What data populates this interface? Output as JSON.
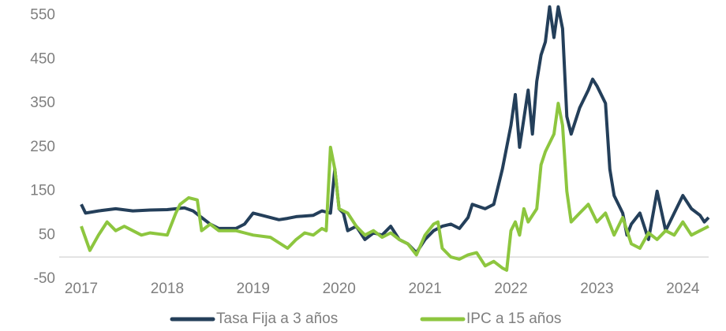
{
  "chart_data": {
    "type": "line",
    "xlim": [
      2017,
      2024.3
    ],
    "xticks": [
      2017,
      2018,
      2019,
      2020,
      2021,
      2022,
      2023,
      2024
    ],
    "ylim": [
      -50,
      580
    ],
    "yticks": [
      -50,
      50,
      150,
      250,
      350,
      450,
      550
    ],
    "grid": false,
    "legend": "bottom",
    "series": [
      {
        "name": "Tasa Fija a 3 años",
        "color": "#243f5a",
        "x": [
          2017.0,
          2017.05,
          2017.2,
          2017.4,
          2017.6,
          2017.8,
          2018.0,
          2018.2,
          2018.3,
          2018.4,
          2018.5,
          2018.6,
          2018.8,
          2018.9,
          2019.0,
          2019.1,
          2019.3,
          2019.4,
          2019.5,
          2019.7,
          2019.8,
          2019.9,
          2019.95,
          2020.0,
          2020.05,
          2020.1,
          2020.2,
          2020.3,
          2020.4,
          2020.5,
          2020.6,
          2020.7,
          2020.8,
          2020.9,
          2021.0,
          2021.1,
          2021.2,
          2021.3,
          2021.4,
          2021.5,
          2021.55,
          2021.7,
          2021.8,
          2021.9,
          2022.0,
          2022.05,
          2022.1,
          2022.2,
          2022.25,
          2022.3,
          2022.35,
          2022.4,
          2022.45,
          2022.5,
          2022.55,
          2022.6,
          2022.65,
          2022.7,
          2022.8,
          2022.9,
          2022.95,
          2023.0,
          2023.1,
          2023.15,
          2023.2,
          2023.3,
          2023.35,
          2023.4,
          2023.5,
          2023.6,
          2023.7,
          2023.8,
          2023.9,
          2024.0,
          2024.1,
          2024.2,
          2024.25,
          2024.3
        ],
        "values": [
          120,
          100,
          105,
          110,
          105,
          107,
          108,
          112,
          105,
          90,
          75,
          65,
          65,
          75,
          100,
          95,
          85,
          88,
          92,
          95,
          105,
          100,
          200,
          110,
          100,
          60,
          70,
          40,
          55,
          50,
          70,
          40,
          30,
          10,
          40,
          60,
          70,
          75,
          65,
          90,
          120,
          110,
          120,
          200,
          300,
          370,
          250,
          380,
          280,
          400,
          460,
          490,
          570,
          500,
          570,
          520,
          320,
          280,
          340,
          380,
          405,
          390,
          350,
          200,
          140,
          100,
          50,
          75,
          100,
          40,
          150,
          60,
          100,
          140,
          110,
          95,
          80,
          90
        ]
      },
      {
        "name": "IPC a 15 años",
        "color": "#8dc63f",
        "x": [
          2017.0,
          2017.1,
          2017.2,
          2017.3,
          2017.4,
          2017.5,
          2017.6,
          2017.7,
          2017.8,
          2018.0,
          2018.1,
          2018.15,
          2018.25,
          2018.35,
          2018.4,
          2018.5,
          2018.6,
          2018.8,
          2018.9,
          2019.0,
          2019.2,
          2019.4,
          2019.5,
          2019.6,
          2019.7,
          2019.8,
          2019.85,
          2019.9,
          2019.95,
          2020.0,
          2020.1,
          2020.2,
          2020.3,
          2020.4,
          2020.5,
          2020.6,
          2020.7,
          2020.8,
          2020.9,
          2021.0,
          2021.1,
          2021.15,
          2021.2,
          2021.3,
          2021.4,
          2021.5,
          2021.6,
          2021.7,
          2021.8,
          2021.9,
          2021.95,
          2022.0,
          2022.05,
          2022.1,
          2022.15,
          2022.2,
          2022.3,
          2022.35,
          2022.4,
          2022.5,
          2022.55,
          2022.6,
          2022.65,
          2022.7,
          2022.8,
          2022.9,
          2023.0,
          2023.1,
          2023.2,
          2023.3,
          2023.4,
          2023.5,
          2023.6,
          2023.7,
          2023.8,
          2023.9,
          2024.0,
          2024.1,
          2024.2,
          2024.3
        ],
        "values": [
          70,
          15,
          50,
          80,
          60,
          70,
          60,
          50,
          55,
          50,
          100,
          120,
          135,
          130,
          60,
          75,
          60,
          60,
          55,
          50,
          45,
          20,
          40,
          55,
          50,
          65,
          60,
          250,
          200,
          110,
          100,
          70,
          50,
          60,
          45,
          55,
          40,
          30,
          5,
          50,
          75,
          80,
          20,
          0,
          -5,
          5,
          10,
          -20,
          -10,
          -25,
          -30,
          60,
          80,
          50,
          110,
          80,
          110,
          210,
          240,
          280,
          350,
          300,
          150,
          80,
          100,
          120,
          80,
          100,
          50,
          90,
          30,
          20,
          55,
          40,
          60,
          50,
          80,
          50,
          60,
          70
        ]
      }
    ]
  }
}
